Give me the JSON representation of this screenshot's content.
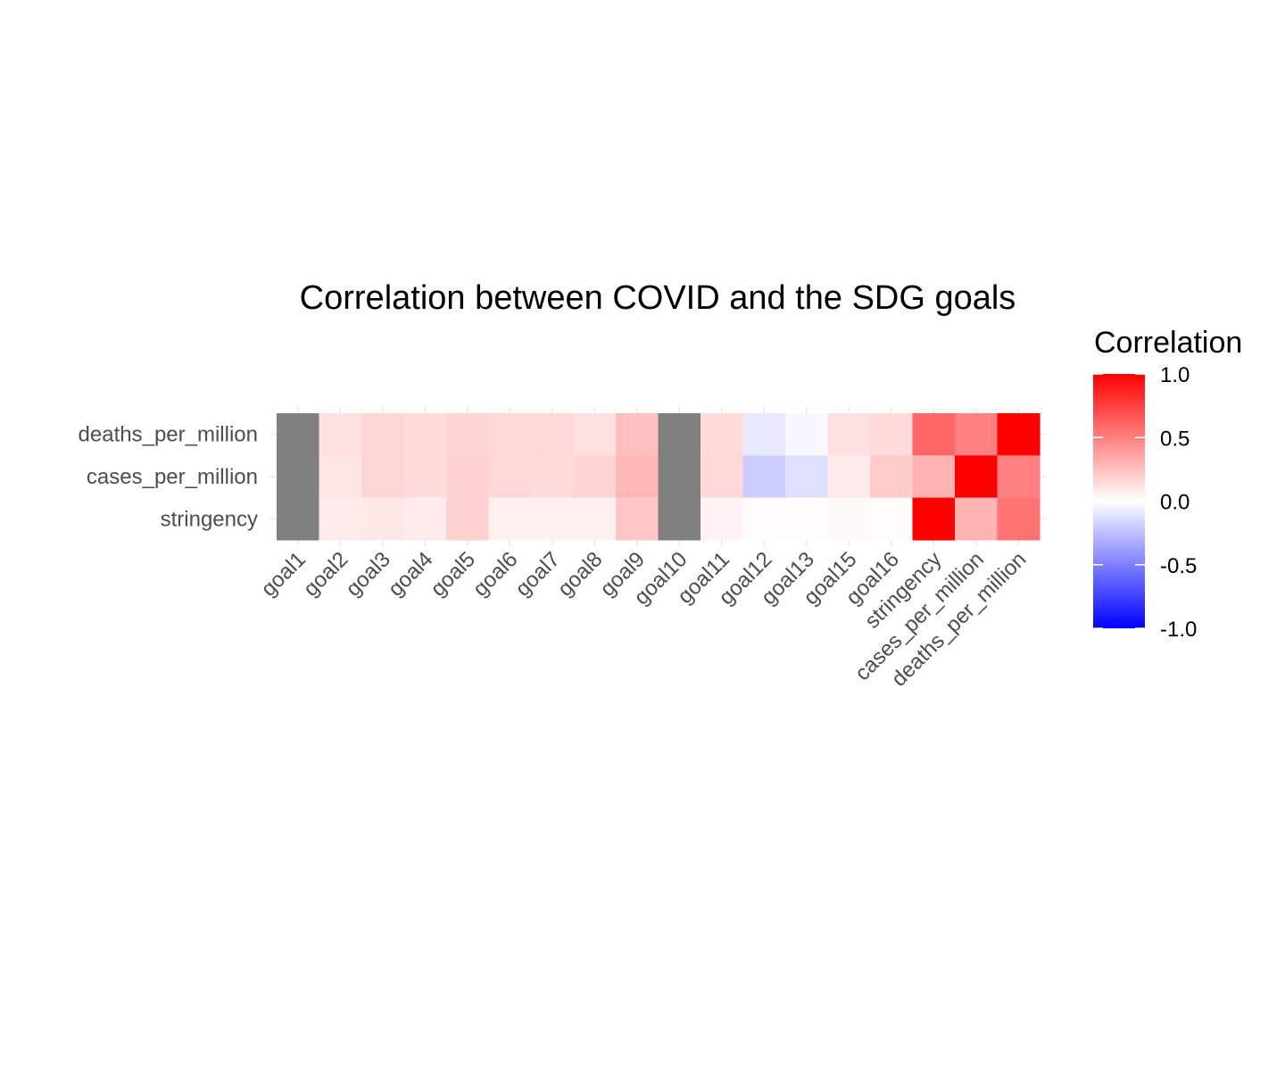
{
  "chart_data": {
    "type": "heatmap",
    "title": "Correlation between COVID and the SDG goals",
    "x_labels": [
      "goal1",
      "goal2",
      "goal3",
      "goal4",
      "goal5",
      "goal6",
      "goal7",
      "goal8",
      "goal9",
      "goal10",
      "goal11",
      "goal12",
      "goal13",
      "goal15",
      "goal16",
      "stringency",
      "cases_per_million",
      "deaths_per_million"
    ],
    "y_labels": [
      "deaths_per_million",
      "cases_per_million",
      "stringency"
    ],
    "values": [
      [
        null,
        0.12,
        0.16,
        0.14,
        0.17,
        0.15,
        0.15,
        0.12,
        0.25,
        null,
        0.14,
        -0.09,
        -0.03,
        0.12,
        0.14,
        0.6,
        0.5,
        1.0
      ],
      [
        null,
        0.1,
        0.16,
        0.14,
        0.18,
        0.15,
        0.14,
        0.17,
        0.28,
        null,
        0.15,
        -0.2,
        -0.12,
        0.08,
        0.2,
        0.3,
        1.0,
        0.5
      ],
      [
        null,
        0.08,
        0.09,
        0.08,
        0.18,
        0.06,
        0.06,
        0.06,
        0.22,
        null,
        0.05,
        0.01,
        0.01,
        0.02,
        0.01,
        1.0,
        0.3,
        0.55
      ]
    ],
    "missing_color": "#808080",
    "legend": {
      "title": "Correlation",
      "ticks": [
        "1.0",
        "0.5",
        "0.0",
        "-0.5",
        "-1.0"
      ],
      "tick_values": [
        1.0,
        0.5,
        0.0,
        -0.5,
        -1.0
      ],
      "range": [
        -1,
        1
      ],
      "low_color": "#0000ff",
      "mid_color": "#ffffff",
      "high_color": "#ff0000"
    }
  }
}
